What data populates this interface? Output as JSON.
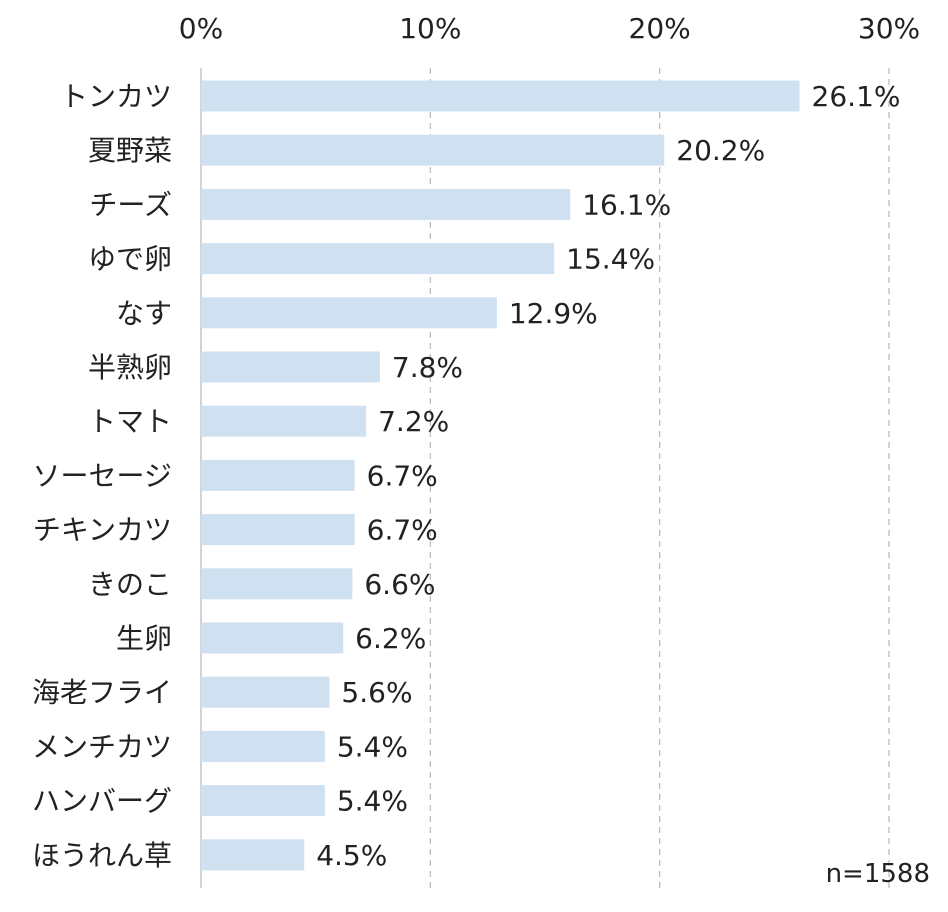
{
  "chart_data": {
    "type": "bar",
    "orientation": "horizontal",
    "categories": [
      "トンカツ",
      "夏野菜",
      "チーズ",
      "ゆで卵",
      "なす",
      "半熟卵",
      "トマト",
      "ソーセージ",
      "チキンカツ",
      "きのこ",
      "生卵",
      "海老フライ",
      "メンチカツ",
      "ハンバーグ",
      "ほうれん草"
    ],
    "values": [
      26.1,
      20.2,
      16.1,
      15.4,
      12.9,
      7.8,
      7.2,
      6.7,
      6.7,
      6.6,
      6.2,
      5.6,
      5.4,
      5.4,
      4.5
    ],
    "value_labels": [
      "26.1%",
      "20.2%",
      "16.1%",
      "15.4%",
      "12.9%",
      "7.8%",
      "7.2%",
      "6.7%",
      "6.7%",
      "6.6%",
      "6.2%",
      "5.6%",
      "5.4%",
      "5.4%",
      "4.5%"
    ],
    "x_ticks": [
      0,
      10,
      20,
      30
    ],
    "x_tick_labels": [
      "0%",
      "10%",
      "20%",
      "30%"
    ],
    "xlim": [
      0,
      30
    ],
    "grid": "vertical dashed",
    "annotation": "n=1588",
    "colors": {
      "bar": "#cfe0f1",
      "grid": "#b0b8c0",
      "text": "#222222"
    }
  }
}
